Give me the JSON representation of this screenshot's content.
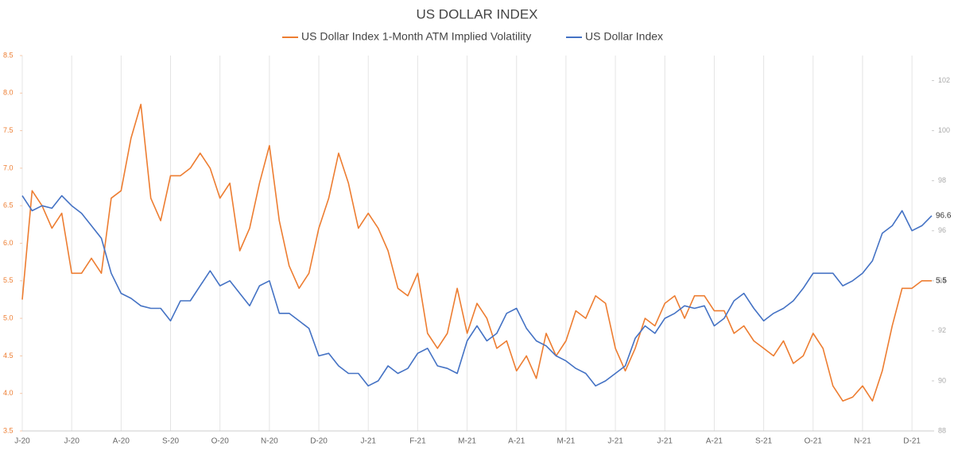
{
  "chart_data": {
    "type": "line",
    "title": "US DOLLAR INDEX",
    "categories": [
      "J-20",
      null,
      null,
      null,
      null,
      "J-20",
      null,
      null,
      null,
      null,
      "A-20",
      null,
      null,
      null,
      null,
      "S-20",
      null,
      null,
      null,
      null,
      "O-20",
      null,
      null,
      null,
      null,
      "N-20",
      null,
      null,
      null,
      null,
      "D-20",
      null,
      null,
      null,
      null,
      "J-21",
      null,
      null,
      null,
      null,
      "F-21",
      null,
      null,
      null,
      null,
      "M-21",
      null,
      null,
      null,
      null,
      "A-21",
      null,
      null,
      null,
      null,
      "M-21",
      null,
      null,
      null,
      null,
      "J-21",
      null,
      null,
      null,
      null,
      "J-21",
      null,
      null,
      null,
      null,
      "A-21",
      null,
      null,
      null,
      null,
      "S-21",
      null,
      null,
      null,
      null,
      "O-21",
      null,
      null,
      null,
      null,
      "N-21",
      null,
      null,
      null,
      null,
      "D-21",
      null,
      null
    ],
    "series": [
      {
        "name": "US Dollar Index 1-Month ATM Implied Volatility",
        "color": "#ed7d31",
        "axis": "y",
        "values": [
          5.25,
          6.7,
          6.5,
          6.2,
          6.4,
          5.6,
          5.6,
          5.8,
          5.6,
          6.6,
          6.7,
          7.4,
          7.85,
          6.6,
          6.3,
          6.9,
          6.9,
          7.0,
          7.2,
          7.0,
          6.6,
          6.8,
          5.9,
          6.2,
          6.8,
          7.3,
          6.3,
          5.7,
          5.4,
          5.6,
          6.2,
          6.6,
          7.2,
          6.8,
          6.2,
          6.4,
          6.2,
          5.9,
          5.4,
          5.3,
          5.6,
          4.8,
          4.6,
          4.8,
          5.4,
          4.8,
          5.2,
          5.0,
          4.6,
          4.7,
          4.3,
          4.5,
          4.2,
          4.8,
          4.5,
          4.7,
          5.1,
          5.0,
          5.3,
          5.2,
          4.6,
          4.3,
          4.6,
          5.0,
          4.9,
          5.2,
          5.3,
          5.0,
          5.3,
          5.3,
          5.1,
          5.1,
          4.8,
          4.9,
          4.7,
          4.6,
          4.5,
          4.7,
          4.4,
          4.5,
          4.8,
          4.6,
          4.1,
          3.9,
          3.95,
          4.1,
          3.9,
          4.3,
          4.9,
          5.4,
          5.4,
          5.5,
          5.5
        ]
      },
      {
        "name": "US Dollar Index",
        "color": "#4472c4",
        "axis": "y2",
        "values": [
          97.4,
          96.8,
          97.0,
          96.9,
          97.4,
          97.0,
          96.7,
          96.2,
          95.7,
          94.3,
          93.5,
          93.3,
          93.0,
          92.9,
          92.9,
          92.4,
          93.2,
          93.2,
          93.8,
          94.4,
          93.8,
          94.0,
          93.5,
          93.0,
          93.8,
          94.0,
          92.7,
          92.7,
          92.4,
          92.1,
          91.0,
          91.1,
          90.6,
          90.3,
          90.3,
          89.8,
          90.0,
          90.6,
          90.3,
          90.5,
          91.1,
          91.3,
          90.6,
          90.5,
          90.3,
          91.6,
          92.2,
          91.6,
          91.9,
          92.7,
          92.9,
          92.1,
          91.6,
          91.4,
          91.0,
          90.8,
          90.5,
          90.3,
          89.8,
          90.0,
          90.3,
          90.6,
          91.7,
          92.2,
          91.9,
          92.5,
          92.7,
          93.0,
          92.9,
          93.0,
          92.2,
          92.5,
          93.2,
          93.5,
          92.9,
          92.4,
          92.7,
          92.9,
          93.2,
          93.7,
          94.3,
          94.3,
          94.3,
          93.8,
          94.0,
          94.3,
          94.8,
          95.9,
          96.2,
          96.8,
          96.0,
          96.2,
          96.6
        ]
      }
    ],
    "ylim": [
      3.5,
      8.5
    ],
    "yticks": [
      3.5,
      {
        "value": 4,
        "label": "4.0"
      },
      4.5,
      {
        "value": 5,
        "label": "5.0"
      },
      5.5,
      {
        "value": 6,
        "label": "6.0"
      },
      6.5,
      {
        "value": 7,
        "label": "7.0"
      },
      7.5,
      {
        "value": 8,
        "label": "8.0"
      },
      8.5
    ],
    "y2lim": [
      88,
      103
    ],
    "y2ticks": [
      88,
      90,
      92,
      94,
      96,
      98,
      100,
      102
    ],
    "grid": true
  }
}
